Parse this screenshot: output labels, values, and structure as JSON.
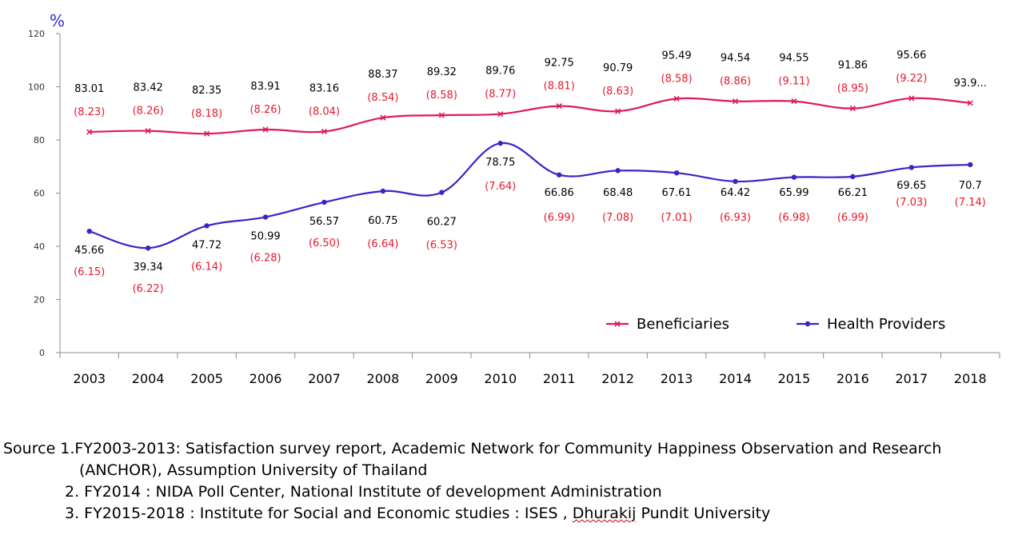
{
  "chart_data": {
    "type": "line",
    "unit_label": "%",
    "ylim": [
      0,
      120
    ],
    "yticks": [
      0,
      20,
      40,
      60,
      80,
      100,
      120
    ],
    "categories": [
      "2003",
      "2004",
      "2005",
      "2006",
      "2007",
      "2008",
      "2009",
      "2010",
      "2011",
      "2012",
      "2013",
      "2014",
      "2015",
      "2016",
      "2017",
      "2018"
    ],
    "legend_position": "bottom-right",
    "series": [
      {
        "name": "Beneficiaries",
        "color": "#e0185a",
        "marker": "x",
        "values": [
          83.01,
          83.42,
          82.35,
          83.91,
          83.16,
          88.37,
          89.32,
          89.76,
          92.75,
          90.79,
          95.49,
          94.54,
          94.55,
          91.86,
          95.66,
          93.9
        ],
        "labels": [
          "83.01",
          "83.42",
          "82.35",
          "83.91",
          "83.16",
          "88.37",
          "89.32",
          "89.76",
          "92.75",
          "90.79",
          "95.49",
          "94.54",
          "94.55",
          "91.86",
          "95.66",
          "93.9..."
        ],
        "se_labels": [
          "(8.23)",
          "(8.26)",
          "(8.18)",
          "(8.26)",
          "(8.04)",
          "(8.54)",
          "(8.58)",
          "(8.77)",
          "(8.81)",
          "(8.63)",
          "(8.58)",
          "(8.86)",
          "(9.11)",
          "(8.95)",
          "(9.22)",
          ""
        ]
      },
      {
        "name": "Health Providers",
        "color": "#3a24c8",
        "marker": "dot",
        "values": [
          45.66,
          39.34,
          47.72,
          50.99,
          56.57,
          60.75,
          60.27,
          78.75,
          66.86,
          68.48,
          67.61,
          64.42,
          65.99,
          66.21,
          69.65,
          70.7
        ],
        "labels": [
          "45.66",
          "39.34",
          "47.72",
          "50.99",
          "56.57",
          "60.75",
          "60.27",
          "78.75",
          "66.86",
          "68.48",
          "67.61",
          "64.42",
          "65.99",
          "66.21",
          "69.65",
          "70.7"
        ],
        "se_labels": [
          "(6.15)",
          "(6.22)",
          "(6.14)",
          "(6.28)",
          "(6.50)",
          "(6.64)",
          "(6.53)",
          "(7.64)",
          "(6.99)",
          "(7.08)",
          "(7.01)",
          "(6.93)",
          "(6.98)",
          "(6.99)",
          "(7.03)",
          "(7.14)"
        ]
      }
    ]
  },
  "source": {
    "line1": "Source  1.FY2003-2013: Satisfaction survey report, Academic Network for Community Happiness Observation and Research",
    "line1b": "(ANCHOR), Assumption University of Thailand",
    "line2": "2. FY2014 : NIDA Poll Center, National Institute of development Administration",
    "line3_prefix": "3. FY2015-2018 : Institute for Social and Economic studies : ISES , ",
    "line3_underlined": "Dhurakij",
    "line3_suffix": "  Pundit University"
  }
}
